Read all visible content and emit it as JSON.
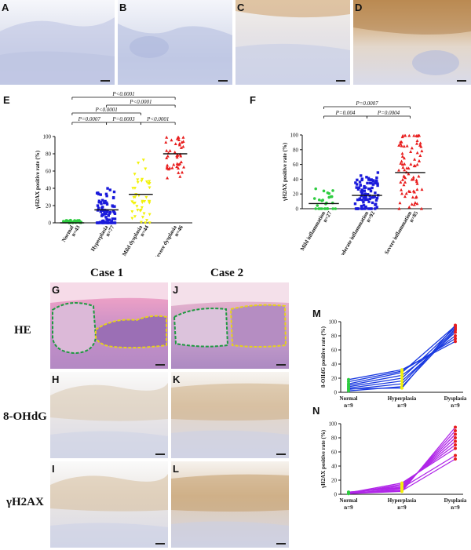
{
  "panels": {
    "A": "A",
    "B": "B",
    "C": "C",
    "D": "D",
    "E": "E",
    "F": "F",
    "G": "G",
    "H": "H",
    "I": "I",
    "J": "J",
    "K": "K",
    "L": "L",
    "M": "M",
    "N": "N"
  },
  "case_labels": [
    "Case 1",
    "Case 2"
  ],
  "row_labels": [
    "HE",
    "8-OHdG",
    "γH2AX"
  ],
  "chart_data": [
    {
      "id": "E",
      "type": "scatter",
      "ylabel": "γH2AX positive rate (%)",
      "ylim": [
        0,
        100
      ],
      "yticks": [
        "0",
        "20",
        "40",
        "60",
        "80",
        "100"
      ],
      "categories": [
        {
          "name": "Normal",
          "n": "n=43",
          "color": "#2ecc40",
          "median": 0
        },
        {
          "name": "Hyperplasia",
          "n": "n=77",
          "color": "#1a1adb",
          "median": 15
        },
        {
          "name": "Mild dysplasia",
          "n": "n=44",
          "color": "#f2f20a",
          "median": 33
        },
        {
          "name": "Severe dysplasia",
          "n": "n=46",
          "color": "#e81d1d",
          "median": 80
        }
      ],
      "comparisons": [
        {
          "label": "P<0.0001",
          "from": 0,
          "to": 3
        },
        {
          "label": "P<0.0001",
          "from": 1,
          "to": 3
        },
        {
          "label": "P<0.0001",
          "from": 0,
          "to": 2
        },
        {
          "label": "P=0.0007",
          "from": 0,
          "to": 1
        },
        {
          "label": "P=0.0003",
          "from": 1,
          "to": 2
        },
        {
          "label": "P<0.0001",
          "from": 2,
          "to": 3
        }
      ]
    },
    {
      "id": "F",
      "type": "scatter",
      "ylabel": "γH2AX positive rate (%)",
      "ylim": [
        0,
        100
      ],
      "yticks": [
        "0",
        "20",
        "40",
        "60",
        "80",
        "100"
      ],
      "categories": [
        {
          "name": "Mild inflammation",
          "n": "n=27",
          "color": "#2ecc40",
          "median": 7
        },
        {
          "name": "Moderate inflammation",
          "n": "n=92",
          "color": "#1a1adb",
          "median": 18
        },
        {
          "name": "Severe inflammation",
          "n": "n=85",
          "color": "#e81d1d",
          "median": 49
        }
      ],
      "comparisons": [
        {
          "label": "P=0.0007",
          "from": 0,
          "to": 2
        },
        {
          "label": "P=0.004",
          "from": 0,
          "to": 1
        },
        {
          "label": "P=0.0004",
          "from": 1,
          "to": 2
        }
      ]
    },
    {
      "id": "M",
      "type": "line",
      "ylabel": "8-OHdG positive rate (%)",
      "ylim": [
        0,
        100
      ],
      "yticks": [
        "0",
        "20",
        "40",
        "60",
        "80",
        "100"
      ],
      "categories": [
        {
          "name": "Normal",
          "n": "n=9"
        },
        {
          "name": "Hyperplasia",
          "n": "n=9"
        },
        {
          "name": "Dysplasia",
          "n": "n=9"
        }
      ],
      "line_color": "#1a3ae0",
      "point_colors": [
        "#2ecc40",
        "#f2f20a",
        "#e81d1d"
      ],
      "series": [
        [
          2,
          8,
          88
        ],
        [
          4,
          12,
          90
        ],
        [
          6,
          16,
          85
        ],
        [
          8,
          20,
          92
        ],
        [
          10,
          24,
          80
        ],
        [
          12,
          28,
          94
        ],
        [
          15,
          30,
          76
        ],
        [
          18,
          32,
          72
        ],
        [
          5,
          6,
          95
        ]
      ]
    },
    {
      "id": "N",
      "type": "line",
      "ylabel": "γH2AX positive rate (%)",
      "ylim": [
        0,
        100
      ],
      "yticks": [
        "0",
        "20",
        "40",
        "60",
        "80",
        "100"
      ],
      "categories": [
        {
          "name": "Normal",
          "n": "n=9"
        },
        {
          "name": "Hyperplasia",
          "n": "n=9"
        },
        {
          "name": "Dysplasia",
          "n": "n=9"
        }
      ],
      "line_color": "#b026e8",
      "point_colors": [
        "#2ecc40",
        "#f2f20a",
        "#e81d1d"
      ],
      "series": [
        [
          1,
          4,
          95
        ],
        [
          2,
          6,
          90
        ],
        [
          1,
          8,
          85
        ],
        [
          3,
          10,
          80
        ],
        [
          2,
          12,
          75
        ],
        [
          1,
          14,
          70
        ],
        [
          2,
          16,
          65
        ],
        [
          3,
          9,
          55
        ],
        [
          1,
          5,
          50
        ]
      ]
    }
  ]
}
